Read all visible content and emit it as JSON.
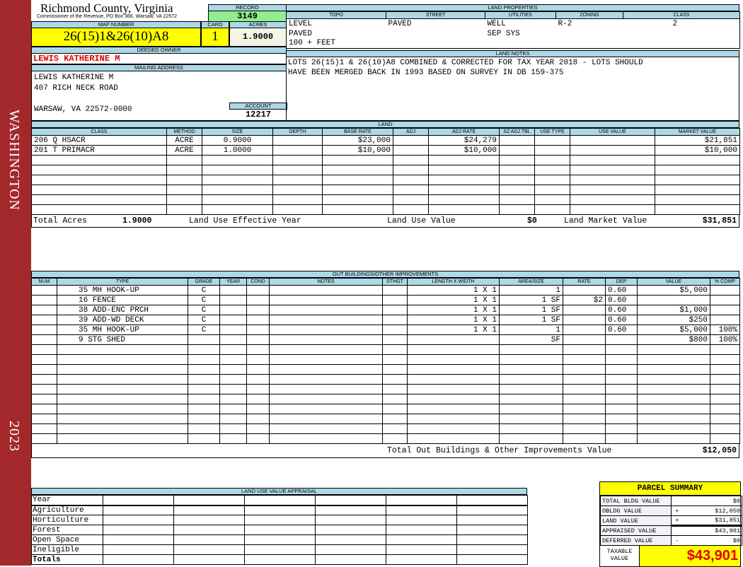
{
  "sidebar": {
    "district": "WASHINGTON",
    "year": "2023",
    "color": "#a3282b"
  },
  "header": {
    "title": "Richmond County, Virginia",
    "subtitle": "Commissioner of the Revenue, PO Box 366, Warsaw, VA 22572"
  },
  "record": {
    "label": "RECORD",
    "value": "3149"
  },
  "map": {
    "map_label": "MAP NUMBER",
    "map_value": "26(15)1&26(10)A8",
    "card_label": "CARD",
    "card_value": "1",
    "acres_label": "ACRES",
    "acres_value": "1.9000"
  },
  "owner": {
    "label": "DEEDED OWNER",
    "value": "LEWIS KATHERINE M"
  },
  "mailing": {
    "label": "MAILING ADDRESS",
    "line1": "LEWIS KATHERINE M",
    "line2": "407 RICH NECK ROAD",
    "line3": "WARSAW, VA 22572-0000"
  },
  "account": {
    "label": "ACCOUNT",
    "value": "12217"
  },
  "land_properties": {
    "label": "LAND PROPERTIES",
    "columns": [
      "TOPO",
      "STREET",
      "UTILITIES",
      "ZONING",
      "CLASS"
    ],
    "rows": [
      [
        "LEVEL",
        "PAVED",
        "WELL",
        "R-2",
        "2"
      ],
      [
        "PAVED",
        "",
        "SEP SYS",
        "",
        ""
      ],
      [
        "100 + FEET",
        "",
        "",
        "",
        ""
      ]
    ]
  },
  "land_notes": {
    "label": "LAND NOTES",
    "line1": "LOTS 26(15)1 & 26(10)A8 COMBINED & CORRECTED FOR TAX YEAR 2018 - LOTS SHOULD",
    "line2": "HAVE BEEN MERGED BACK IN 1993 BASED ON SURVEY IN DB 159-375"
  },
  "land": {
    "label": "LAND",
    "columns": [
      "CLASS",
      "METHOD",
      "SIZE",
      "DEPTH",
      "BASE RATE",
      "ADJ",
      "ADJ RATE",
      "SZ ADJ TBL",
      "USE TYPE",
      "USE VALUE",
      "MARKET VALUE"
    ],
    "rows": [
      [
        "206 Q HSACR",
        "ACRE",
        "0.9000",
        "",
        "$23,000",
        "",
        "$24,279",
        "",
        "",
        "",
        "$21,851"
      ],
      [
        "201 T PRIMACR",
        "ACRE",
        "1.0000",
        "",
        "$10,000",
        "",
        "$10,000",
        "",
        "",
        "",
        "$10,000"
      ]
    ],
    "totals": {
      "acres_label": "Total Acres",
      "acres": "1.9000",
      "use_year_label": "Land Use Effective Year",
      "use_value_label": "Land Use Value",
      "use_value": "$0",
      "market_label": "Land Market Value",
      "market_value": "$31,851"
    }
  },
  "outbuildings": {
    "label": "OUT BUILDINGS/OTHER IMPROVEMENTS",
    "columns": [
      "NUM",
      "TYPE",
      "GRADE",
      "YEAR",
      "COND",
      "NOTES",
      "STHGT",
      "LENGTH X WIDTH",
      "AREA/SIZE",
      "RATE",
      "DEP",
      "VALUE",
      "% COMP"
    ],
    "rows": [
      [
        "",
        "35 MH HOOK-UP",
        "C",
        "",
        "",
        "",
        "",
        "1 X 1",
        "1",
        "",
        "0.60",
        "$5,000",
        ""
      ],
      [
        "",
        "16 FENCE",
        "C",
        "",
        "",
        "",
        "",
        "1 X 1",
        "1 SF",
        "$2",
        "0.60",
        "",
        ""
      ],
      [
        "",
        "38 ADD-ENC PRCH",
        "C",
        "",
        "",
        "",
        "",
        "1 X 1",
        "1 SF",
        "",
        "0.60",
        "$1,000",
        ""
      ],
      [
        "",
        "39 ADD-WD DECK",
        "C",
        "",
        "",
        "",
        "",
        "1 X 1",
        "1 SF",
        "",
        "0.60",
        "$250",
        ""
      ],
      [
        "",
        "35 MH HOOK-UP",
        "C",
        "",
        "",
        "",
        "",
        "1 X 1",
        "1",
        "",
        "0.60",
        "$5,000",
        "100%"
      ],
      [
        "",
        "9 STG SHED",
        "",
        "",
        "",
        "",
        "",
        "",
        "SF",
        "",
        "",
        "$800",
        "100%"
      ]
    ],
    "total_label": "Total Out Buildings & Other Improvements Value",
    "total_value": "$12,050"
  },
  "land_use": {
    "label": "LAND USE VALUE APPRAISAL",
    "rows": [
      "Year",
      "Agriculture",
      "Horticulture",
      "Forest",
      "Open Space",
      "Ineligible",
      "Totals"
    ]
  },
  "parcel_summary": {
    "title": "PARCEL SUMMARY",
    "rows": [
      {
        "label": "TOTAL BLDG VALUE",
        "op": "",
        "value": "$0"
      },
      {
        "label": "OBLDG VALUE",
        "op": "+",
        "value": "$12,050"
      },
      {
        "label": "LAND VALUE",
        "op": "+",
        "value": "$31,851"
      },
      {
        "label": "APPRAISED VALUE",
        "op": "",
        "value": "$43,901"
      },
      {
        "label": "DEFERRED VALUE",
        "op": "-",
        "value": "$0"
      }
    ],
    "taxable_label": "TAXABLE VALUE",
    "taxable_value": "$43,901"
  }
}
